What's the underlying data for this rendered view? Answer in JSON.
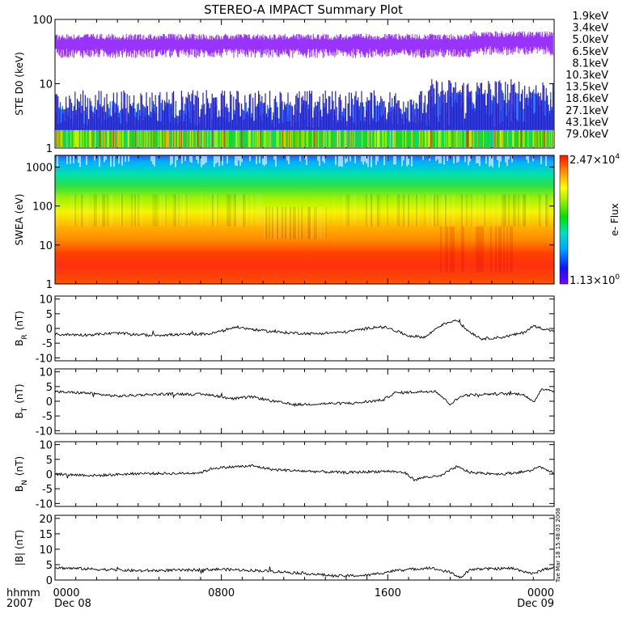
{
  "chart_data": {
    "type": "line",
    "title": "STEREO-A IMPACT Summary Plot",
    "stamp": "Tue Mar 18 15:48:03 2008",
    "x_axis": {
      "label_line1": "hhmm",
      "label_line2": "2007",
      "ticks": [
        {
          "hour": 0,
          "time": "0000",
          "date": "Dec 08"
        },
        {
          "hour": 8,
          "time": "0800",
          "date": ""
        },
        {
          "hour": 16,
          "time": "1600",
          "date": ""
        },
        {
          "hour": 24,
          "time": "0000",
          "date": "Dec 09"
        }
      ],
      "range_hours": [
        0,
        24
      ]
    },
    "panels": [
      {
        "id": "ste",
        "type": "line",
        "ylabel": "STE D0 (keV)",
        "scale": "log",
        "ylim": [
          1,
          100
        ],
        "ticks": [
          {
            "v": 100,
            "label": "100"
          },
          {
            "v": 10,
            "label": "10"
          },
          {
            "v": 1,
            "label": "1"
          }
        ],
        "legend_placement": "right",
        "series": [
          {
            "name": "1.9keV",
            "color": "#9933ff"
          },
          {
            "name": "3.4keV",
            "color": "#2222cc"
          },
          {
            "name": "5.0keV",
            "color": "#0055ff"
          },
          {
            "name": "6.5keV",
            "color": "#00bbdd"
          },
          {
            "name": "8.1keV",
            "color": "#00dddd"
          },
          {
            "name": "10.3keV",
            "color": "#00ee66"
          },
          {
            "name": "13.5keV",
            "color": "#33cc00"
          },
          {
            "name": "18.6keV",
            "color": "#99ee00"
          },
          {
            "name": "27.1keV",
            "color": "#eeee00"
          },
          {
            "name": "43.1keV",
            "color": "#ff9900"
          },
          {
            "name": "79.0keV",
            "color": "#ee3300"
          }
        ],
        "levels": {
          "1.9keV": [
            25,
            60
          ],
          "3.4keV": [
            2.4,
            8
          ],
          "5.0keV": [
            2.0,
            5.5
          ],
          "low_band": [
            1.0,
            1.9
          ]
        }
      },
      {
        "id": "swea",
        "type": "heatmap",
        "ylabel": "SWEA (eV)",
        "scale": "log",
        "ylim": [
          1,
          2000
        ],
        "ticks": [
          {
            "v": 1000,
            "label": "1000"
          },
          {
            "v": 100,
            "label": "100"
          },
          {
            "v": 10,
            "label": "10"
          },
          {
            "v": 1,
            "label": "1"
          }
        ],
        "colorbar": {
          "label": "e- Flux",
          "max_mantissa": "2.47×10",
          "max_exp": "4",
          "min_mantissa": "1.13×10",
          "min_exp": "0"
        }
      },
      {
        "id": "br",
        "type": "line",
        "ylabel": "B",
        "ylabel_sub": "R",
        "units": "(nT)",
        "ylim": [
          -11,
          11
        ],
        "ticks": [
          {
            "v": 10,
            "label": "10"
          },
          {
            "v": 5,
            "label": "5"
          },
          {
            "v": 0,
            "label": "0"
          },
          {
            "v": -5,
            "label": "-5"
          },
          {
            "v": -10,
            "label": "-10"
          }
        ],
        "anchors": [
          [
            0,
            -2
          ],
          [
            1.5,
            -2.2
          ],
          [
            3,
            -1.6
          ],
          [
            4.5,
            -2.3
          ],
          [
            6,
            -2.1
          ],
          [
            7.5,
            -1.8
          ],
          [
            8.7,
            0.5
          ],
          [
            10,
            -0.8
          ],
          [
            11,
            -1.4
          ],
          [
            12.5,
            -1.8
          ],
          [
            14,
            -1.2
          ],
          [
            15.5,
            0.6
          ],
          [
            16,
            0.2
          ],
          [
            17,
            -2.5
          ],
          [
            17.8,
            -3
          ],
          [
            18.5,
            1
          ],
          [
            19.3,
            3
          ],
          [
            19.8,
            -0.5
          ],
          [
            20.5,
            -3.5
          ],
          [
            21.5,
            -3
          ],
          [
            22.5,
            -1.5
          ],
          [
            23,
            0.8
          ],
          [
            24,
            -1
          ]
        ]
      },
      {
        "id": "bt",
        "type": "line",
        "ylabel": "B",
        "ylabel_sub": "T",
        "units": "(nT)",
        "ylim": [
          -11,
          11
        ],
        "ticks": [
          {
            "v": 10,
            "label": "10"
          },
          {
            "v": 5,
            "label": "5"
          },
          {
            "v": 0,
            "label": "0"
          },
          {
            "v": -5,
            "label": "-5"
          },
          {
            "v": -10,
            "label": "-10"
          }
        ],
        "anchors": [
          [
            0,
            3.2
          ],
          [
            1.5,
            2.8
          ],
          [
            3,
            1.7
          ],
          [
            4.5,
            2.3
          ],
          [
            6,
            2.5
          ],
          [
            7.5,
            2.2
          ],
          [
            8.5,
            0.8
          ],
          [
            9.5,
            1.5
          ],
          [
            10.5,
            0
          ],
          [
            11.5,
            -1.2
          ],
          [
            13,
            -0.8
          ],
          [
            14.5,
            -0.6
          ],
          [
            15.8,
            0.5
          ],
          [
            16.3,
            2.8
          ],
          [
            17.5,
            3.2
          ],
          [
            18.3,
            3.5
          ],
          [
            19,
            -1
          ],
          [
            19.6,
            2
          ],
          [
            21,
            2.5
          ],
          [
            22.5,
            2.5
          ],
          [
            23,
            -0.5
          ],
          [
            23.4,
            4.3
          ],
          [
            24,
            3.5
          ]
        ]
      },
      {
        "id": "bn",
        "type": "line",
        "ylabel": "B",
        "ylabel_sub": "N",
        "units": "(nT)",
        "ylim": [
          -11,
          11
        ],
        "ticks": [
          {
            "v": 10,
            "label": "10"
          },
          {
            "v": 5,
            "label": "5"
          },
          {
            "v": 0,
            "label": "0"
          },
          {
            "v": -5,
            "label": "-5"
          },
          {
            "v": -10,
            "label": "-10"
          }
        ],
        "anchors": [
          [
            0,
            0
          ],
          [
            2,
            -0.5
          ],
          [
            4,
            0.2
          ],
          [
            6,
            0.2
          ],
          [
            7,
            0.5
          ],
          [
            7.6,
            2
          ],
          [
            8.7,
            2.5
          ],
          [
            9.5,
            2.8
          ],
          [
            10.5,
            1.5
          ],
          [
            12,
            1
          ],
          [
            14,
            0.5
          ],
          [
            16,
            1
          ],
          [
            16.8,
            0.5
          ],
          [
            17.3,
            -2
          ],
          [
            17.8,
            -1
          ],
          [
            18.5,
            -0.8
          ],
          [
            19.3,
            2.5
          ],
          [
            20,
            0.5
          ],
          [
            21.5,
            0
          ],
          [
            22.8,
            1
          ],
          [
            23.3,
            2.5
          ],
          [
            24,
            0.5
          ]
        ]
      },
      {
        "id": "bmag",
        "type": "line",
        "ylabel": "|B| (nT)",
        "ylim": [
          0,
          21
        ],
        "ticks": [
          {
            "v": 20,
            "label": "20"
          },
          {
            "v": 15,
            "label": "15"
          },
          {
            "v": 10,
            "label": "10"
          },
          {
            "v": 5,
            "label": "5"
          },
          {
            "v": 0,
            "label": "0"
          }
        ],
        "anchors": [
          [
            0,
            4
          ],
          [
            2,
            3.5
          ],
          [
            4,
            3
          ],
          [
            6,
            3.2
          ],
          [
            8,
            3.5
          ],
          [
            10,
            3
          ],
          [
            12,
            2.2
          ],
          [
            13.5,
            1.3
          ],
          [
            15,
            1.5
          ],
          [
            16.3,
            3
          ],
          [
            18,
            4
          ],
          [
            19,
            2.5
          ],
          [
            19.5,
            0.8
          ],
          [
            20,
            3.5
          ],
          [
            22,
            3.8
          ],
          [
            23,
            2
          ],
          [
            23.5,
            3.5
          ],
          [
            24,
            4
          ]
        ]
      }
    ]
  }
}
